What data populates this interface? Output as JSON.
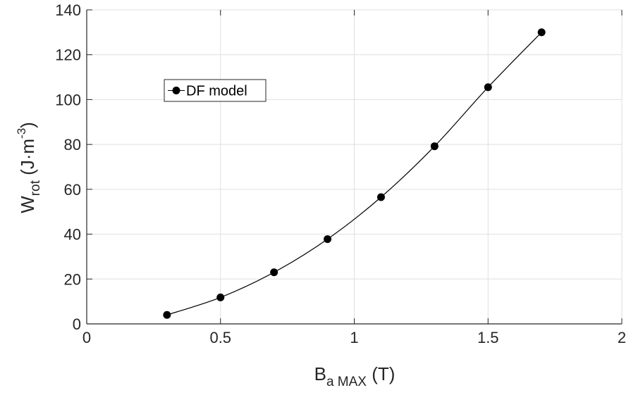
{
  "chart_data": {
    "type": "line",
    "x": [
      0.3,
      0.5,
      0.7,
      0.9,
      1.1,
      1.3,
      1.5,
      1.7
    ],
    "series": [
      {
        "name": "DF model",
        "values": [
          4,
          11.8,
          23,
          37.8,
          56.5,
          79.2,
          105.5,
          130
        ]
      }
    ],
    "xlim": [
      0,
      2
    ],
    "ylim": [
      0,
      140
    ],
    "xticks": [
      0,
      0.5,
      1,
      1.5,
      2
    ],
    "xtick_labels": [
      "0",
      "0.5",
      "1",
      "1.5",
      "2"
    ],
    "yticks": [
      0,
      20,
      40,
      60,
      80,
      100,
      120,
      140
    ],
    "ytick_labels": [
      "0",
      "20",
      "40",
      "60",
      "80",
      "100",
      "120",
      "140"
    ],
    "xlabel": {
      "main": "B",
      "subscript": "a MAX",
      "rest": " (T)"
    },
    "ylabel": {
      "main": "W",
      "subscript": "rot",
      "rest1": " (J·m",
      "superscript": "-3",
      "rest2": ")"
    },
    "grid": true,
    "legend_position": "top-left",
    "colors": {
      "series": "#000000",
      "grid": "#dfdfdf",
      "axis": "#262626"
    }
  }
}
